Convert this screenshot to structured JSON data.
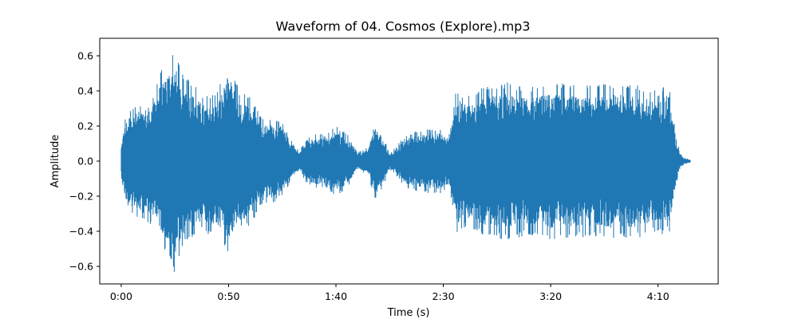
{
  "chart_data": {
    "type": "area",
    "title": "Waveform of 04. Cosmos (Explore).mp3",
    "xlabel": "Time (s)",
    "ylabel": "Amplitude",
    "xlim": [
      -10,
      278
    ],
    "ylim": [
      -0.7,
      0.7
    ],
    "x_ticks": [
      {
        "value": 0,
        "label": "0:00"
      },
      {
        "value": 50,
        "label": "0:50"
      },
      {
        "value": 100,
        "label": "1:40"
      },
      {
        "value": 150,
        "label": "2:30"
      },
      {
        "value": 200,
        "label": "3:20"
      },
      {
        "value": 250,
        "label": "4:10"
      }
    ],
    "y_ticks": [
      {
        "value": 0.6,
        "label": "0.6"
      },
      {
        "value": 0.4,
        "label": "0.4"
      },
      {
        "value": 0.2,
        "label": "0.2"
      },
      {
        "value": 0.0,
        "label": "0.0"
      },
      {
        "value": -0.2,
        "label": "−0.2"
      },
      {
        "value": -0.4,
        "label": "−0.4"
      },
      {
        "value": -0.6,
        "label": "−0.6"
      }
    ],
    "grid": false,
    "line_color": "#1f77b4",
    "series": [
      {
        "envelope_time_s": [
          0,
          1,
          3,
          8,
          15,
          20,
          25,
          28,
          33,
          38,
          45,
          50,
          55,
          60,
          63,
          66,
          70,
          75,
          80,
          83,
          86,
          90,
          95,
          100,
          105,
          110,
          115,
          118,
          121,
          125,
          128,
          132,
          137,
          142,
          147,
          150,
          153,
          154.5,
          156,
          160,
          170,
          180,
          190,
          200,
          210,
          220,
          230,
          240,
          250,
          255,
          258,
          260,
          262,
          265
        ],
        "envelope_max": [
          0.1,
          0.2,
          0.3,
          0.33,
          0.38,
          0.6,
          0.64,
          0.5,
          0.45,
          0.38,
          0.4,
          0.58,
          0.4,
          0.38,
          0.3,
          0.24,
          0.25,
          0.23,
          0.1,
          0.06,
          0.12,
          0.16,
          0.15,
          0.2,
          0.16,
          0.05,
          0.08,
          0.22,
          0.18,
          0.05,
          0.08,
          0.15,
          0.17,
          0.18,
          0.19,
          0.18,
          0.16,
          0.28,
          0.42,
          0.38,
          0.43,
          0.45,
          0.42,
          0.45,
          0.44,
          0.43,
          0.45,
          0.44,
          0.4,
          0.45,
          0.18,
          0.06,
          0.02,
          0.01
        ],
        "envelope_min": [
          -0.1,
          -0.2,
          -0.3,
          -0.33,
          -0.38,
          -0.5,
          -0.64,
          -0.5,
          -0.45,
          -0.4,
          -0.45,
          -0.52,
          -0.4,
          -0.38,
          -0.3,
          -0.24,
          -0.25,
          -0.2,
          -0.1,
          -0.06,
          -0.12,
          -0.16,
          -0.15,
          -0.2,
          -0.16,
          -0.05,
          -0.08,
          -0.22,
          -0.18,
          -0.05,
          -0.08,
          -0.15,
          -0.17,
          -0.18,
          -0.19,
          -0.18,
          -0.16,
          -0.28,
          -0.42,
          -0.38,
          -0.43,
          -0.45,
          -0.42,
          -0.45,
          -0.44,
          -0.43,
          -0.45,
          -0.44,
          -0.4,
          -0.45,
          -0.18,
          -0.06,
          -0.02,
          -0.01
        ]
      }
    ]
  }
}
